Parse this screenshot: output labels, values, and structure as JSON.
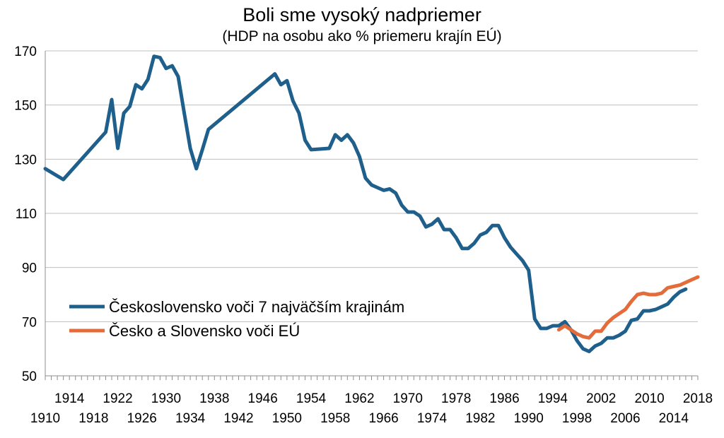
{
  "chart_data": {
    "type": "line",
    "title": "Boli sme vysoký nadpriemer",
    "subtitle": "(HDP na osobu ako % priemeru krajín EÚ)",
    "xlabel": "",
    "ylabel": "",
    "xlim": [
      1910,
      2018
    ],
    "ylim": [
      50,
      170
    ],
    "y_ticks": [
      50,
      70,
      90,
      110,
      130,
      150,
      170
    ],
    "x_ticks_upper": [
      "1914",
      "1922",
      "1930",
      "1938",
      "1946",
      "1954",
      "1962",
      "1970",
      "1978",
      "1986",
      "1994",
      "2002",
      "2010",
      "2018"
    ],
    "x_ticks_lower": [
      "1910",
      "1918",
      "1926",
      "1934",
      "1942",
      "1950",
      "1958",
      "1966",
      "1974",
      "1982",
      "1990",
      "1998",
      "2006",
      "2014"
    ],
    "grid": true,
    "legend_position": "bottom-left",
    "series": [
      {
        "name": "Československo voči 7 najväčším krajinám",
        "color": "#1f5f8b",
        "points": [
          [
            1910,
            126.5
          ],
          [
            1913,
            122.5
          ],
          [
            1920,
            140
          ],
          [
            1921,
            152
          ],
          [
            1922,
            134
          ],
          [
            1923,
            147
          ],
          [
            1924,
            149.5
          ],
          [
            1925,
            157.5
          ],
          [
            1926,
            156
          ],
          [
            1927,
            159.5
          ],
          [
            1928,
            168
          ],
          [
            1929,
            167.5
          ],
          [
            1930,
            163.5
          ],
          [
            1931,
            164.5
          ],
          [
            1932,
            160.5
          ],
          [
            1933,
            147
          ],
          [
            1934,
            134
          ],
          [
            1935,
            126.5
          ],
          [
            1936,
            133.5
          ],
          [
            1937,
            141
          ],
          [
            1948,
            161.5
          ],
          [
            1949,
            157.5
          ],
          [
            1950,
            159
          ],
          [
            1951,
            151.5
          ],
          [
            1952,
            147
          ],
          [
            1953,
            137
          ],
          [
            1954,
            133.5
          ],
          [
            1957,
            134
          ],
          [
            1958,
            139
          ],
          [
            1959,
            137
          ],
          [
            1960,
            139
          ],
          [
            1961,
            136
          ],
          [
            1962,
            131
          ],
          [
            1963,
            123
          ],
          [
            1964,
            120.5
          ],
          [
            1965,
            119.5
          ],
          [
            1966,
            118.5
          ],
          [
            1967,
            119
          ],
          [
            1968,
            117.5
          ],
          [
            1969,
            113
          ],
          [
            1970,
            110.5
          ],
          [
            1971,
            110.5
          ],
          [
            1972,
            109
          ],
          [
            1973,
            105
          ],
          [
            1974,
            106
          ],
          [
            1975,
            108
          ],
          [
            1976,
            104
          ],
          [
            1977,
            104
          ],
          [
            1978,
            101
          ],
          [
            1979,
            97
          ],
          [
            1980,
            97
          ],
          [
            1981,
            99
          ],
          [
            1982,
            102
          ],
          [
            1983,
            103
          ],
          [
            1984,
            105.5
          ],
          [
            1985,
            105.5
          ],
          [
            1986,
            101
          ],
          [
            1987,
            97.5
          ],
          [
            1988,
            95
          ],
          [
            1989,
            92.5
          ],
          [
            1990,
            89
          ],
          [
            1991,
            71
          ],
          [
            1992,
            67.5
          ],
          [
            1993,
            67.5
          ],
          [
            1994,
            68.5
          ],
          [
            1995,
            68.5
          ],
          [
            1996,
            70
          ],
          [
            1997,
            67
          ],
          [
            1998,
            63
          ],
          [
            1999,
            60
          ],
          [
            2000,
            59
          ],
          [
            2001,
            61
          ],
          [
            2002,
            62
          ],
          [
            2003,
            64
          ],
          [
            2004,
            64
          ],
          [
            2005,
            65
          ],
          [
            2006,
            66.5
          ],
          [
            2007,
            70.5
          ],
          [
            2008,
            71
          ],
          [
            2009,
            74
          ],
          [
            2010,
            74
          ],
          [
            2011,
            74.5
          ],
          [
            2012,
            75.5
          ],
          [
            2013,
            76.5
          ],
          [
            2014,
            79
          ],
          [
            2015,
            81
          ],
          [
            2016,
            82
          ]
        ]
      },
      {
        "name": "Česko a Slovensko voči EÚ",
        "color": "#e36c3a",
        "points": [
          [
            1995,
            67
          ],
          [
            1996,
            68.5
          ],
          [
            1997,
            67
          ],
          [
            1998,
            65.5
          ],
          [
            1999,
            64.5
          ],
          [
            2000,
            64
          ],
          [
            2001,
            66.5
          ],
          [
            2002,
            66.5
          ],
          [
            2003,
            69.5
          ],
          [
            2004,
            71.5
          ],
          [
            2005,
            73
          ],
          [
            2006,
            74.5
          ],
          [
            2007,
            77.5
          ],
          [
            2008,
            80
          ],
          [
            2009,
            80.5
          ],
          [
            2010,
            80
          ],
          [
            2011,
            80
          ],
          [
            2012,
            80.5
          ],
          [
            2013,
            82.5
          ],
          [
            2014,
            83
          ],
          [
            2015,
            83.5
          ],
          [
            2016,
            84.5
          ],
          [
            2017,
            85.5
          ],
          [
            2018,
            86.5
          ]
        ]
      }
    ]
  }
}
